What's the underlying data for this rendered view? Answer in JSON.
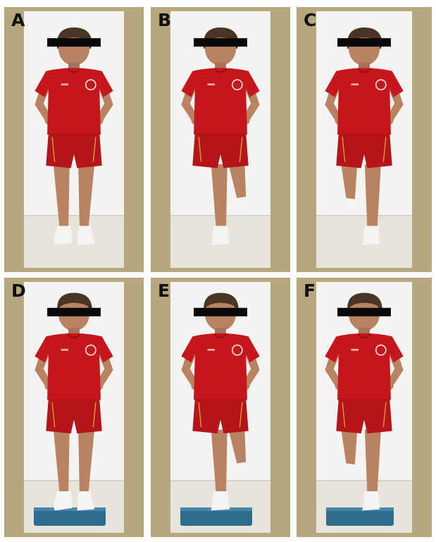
{
  "figure": {
    "panels": [
      {
        "label": "A",
        "pose": "standing-both-feet-floor"
      },
      {
        "label": "B",
        "pose": "single-leg-right-knee-bent-floor"
      },
      {
        "label": "C",
        "pose": "single-leg-left-knee-bent-floor"
      },
      {
        "label": "D",
        "pose": "standing-both-feet-step"
      },
      {
        "label": "E",
        "pose": "single-leg-right-knee-bent-step"
      },
      {
        "label": "F",
        "pose": "single-leg-left-knee-bent-step"
      }
    ],
    "colors": {
      "frame": "#b7a77f",
      "wall": "#f3f3f1",
      "floor": "#e7e4dc",
      "shirt": "#c4161c",
      "skin": "#b98262",
      "hair": "#4a3524",
      "censor_bar": "#0a0a0a",
      "step": "#2f6a8f",
      "sock": "#f4f4f4"
    }
  }
}
